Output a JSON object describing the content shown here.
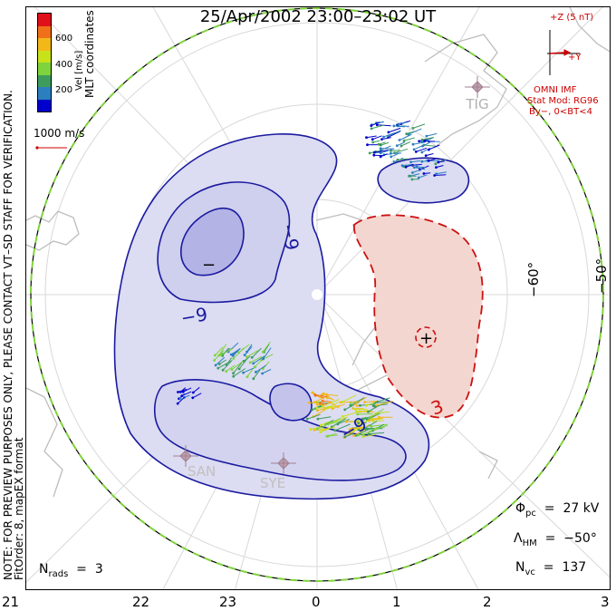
{
  "title": "25/Apr/2002 23:00–23:02 UT",
  "coordinates_label": "MLT coordinates",
  "colorbar": {
    "label": "Vel [m/s]",
    "ticks": [
      "600",
      "400",
      "200"
    ],
    "colors": [
      "#0000cc",
      "#2c7fbf",
      "#3d9c5c",
      "#7fd33c",
      "#c8e21a",
      "#f2b81a",
      "#f07019",
      "#e0101a"
    ]
  },
  "scale_vector": {
    "label": "1000 m/s",
    "color": "#cc0000"
  },
  "notice": "NOTE: FOR PREVIEW PURPOSES ONLY, PLEASE CONTACT VT–SD STAFF FOR VERIFICATION.",
  "fit_info": "FitOrder: 8, mapEX format",
  "mlt_ticks": [
    "21",
    "22",
    "23",
    "0",
    "1",
    "2",
    "3"
  ],
  "latitude_labels": [
    "−60°",
    "−50°"
  ],
  "contours": [
    {
      "label": "−9",
      "sign": "negative"
    },
    {
      "label": "−9",
      "sign": "negative"
    },
    {
      "label": "−9",
      "sign": "negative"
    },
    {
      "label": "3",
      "sign": "positive"
    }
  ],
  "potential_minimum_symbol": "−",
  "potential_maximum_symbol": "+",
  "stations": [
    "TIG",
    "SAN",
    "SYE"
  ],
  "imf": {
    "bz_label": "+Z (5 nT)",
    "by_label": "+Y",
    "source": "OMNI IMF",
    "model": "Stat Mod: RG96",
    "condition": "By−, 0<BT<4",
    "color": "#cc0000"
  },
  "stats": {
    "phi_pc": "27 kV",
    "lambda_hm": "−50°",
    "n_vc": "137",
    "n_rads": "3"
  },
  "colors": {
    "negative_cell": "#c8c8f0",
    "negative_core": "#a8a8e8",
    "positive_cell": "#f3cfc8",
    "contour_negative": "#1a1aa0",
    "contour_positive": "#cc1111",
    "coastline": "#c8c8c8",
    "boundary": "#7fd33c"
  }
}
